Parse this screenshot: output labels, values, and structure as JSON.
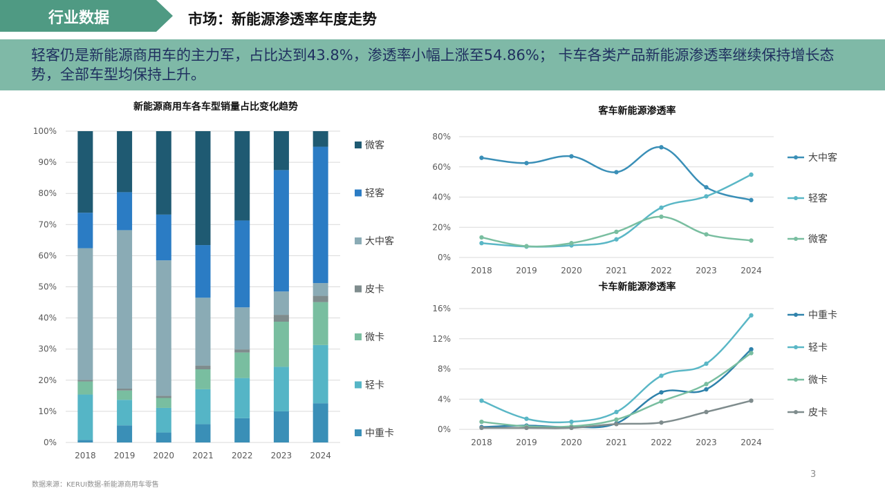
{
  "header": {
    "tag": "行业数据",
    "title": "市场：新能源渗透率年度走势",
    "summary": "轻客仍是新能源商用车的主力军，占比达到43.8%，渗透率小幅上涨至54.86%； 卡车各类产品新能源渗透率继续保持增长态势，全部车型均保持上升。"
  },
  "footer": {
    "source": "数据来源：KERUI数据-新能源商用车零售",
    "page": "3"
  },
  "chart_data": [
    {
      "type": "bar",
      "stacked": true,
      "title": "新能源商用车各车型销量占比变化趋势",
      "categories": [
        "2018",
        "2019",
        "2020",
        "2021",
        "2022",
        "2023",
        "2024"
      ],
      "ylim": [
        0,
        100
      ],
      "yticks": [
        "0%",
        "10%",
        "20%",
        "30%",
        "40%",
        "50%",
        "60%",
        "70%",
        "80%",
        "90%",
        "100%"
      ],
      "legend_position": "right",
      "series": [
        {
          "name": "中重卡",
          "color": "#3a8fb7",
          "values": [
            0.8,
            5.5,
            3.2,
            5.9,
            7.8,
            10.0,
            12.6
          ]
        },
        {
          "name": "轻卡",
          "color": "#55b5c6",
          "values": [
            14.6,
            8.2,
            7.9,
            11.2,
            12.9,
            14.3,
            18.7
          ]
        },
        {
          "name": "微卡",
          "color": "#79bea0",
          "values": [
            4.2,
            3.0,
            3.2,
            6.4,
            8.2,
            14.5,
            13.8
          ]
        },
        {
          "name": "皮卡",
          "color": "#7f8c8d",
          "values": [
            0.5,
            0.6,
            0.7,
            1.2,
            1.0,
            2.2,
            2.0
          ]
        },
        {
          "name": "大中客",
          "color": "#8aabb5",
          "values": [
            42.3,
            50.9,
            43.5,
            21.8,
            13.5,
            7.5,
            4.1
          ]
        },
        {
          "name": "轻客",
          "color": "#2b7cc4",
          "values": [
            11.4,
            12.2,
            14.7,
            16.9,
            27.9,
            39.0,
            43.8
          ]
        },
        {
          "name": "微客",
          "color": "#1f5a72",
          "values": [
            26.2,
            19.6,
            26.8,
            36.6,
            28.7,
            12.5,
            5.0
          ]
        }
      ]
    },
    {
      "type": "line",
      "title": "客车新能源渗透率",
      "x": [
        "2018",
        "2019",
        "2020",
        "2021",
        "2022",
        "2023",
        "2024"
      ],
      "ylim": [
        0,
        80
      ],
      "yticks": [
        "0%",
        "20%",
        "40%",
        "60%",
        "80%"
      ],
      "legend_position": "right",
      "series": [
        {
          "name": "大中客",
          "color": "#3a8fb7",
          "values": [
            66,
            62.5,
            67,
            56.5,
            73,
            46.5,
            38
          ]
        },
        {
          "name": "轻客",
          "color": "#5ab7c6",
          "values": [
            9.5,
            7.2,
            8,
            12,
            33,
            40.5,
            54.86
          ]
        },
        {
          "name": "微客",
          "color": "#79bea0",
          "values": [
            13.3,
            7.5,
            9.5,
            17,
            27,
            15.3,
            11.2
          ]
        }
      ]
    },
    {
      "type": "line",
      "title": "卡车新能源渗透率",
      "x": [
        "2018",
        "2019",
        "2020",
        "2021",
        "2022",
        "2023",
        "2024"
      ],
      "ylim": [
        0,
        16
      ],
      "yticks": [
        "0%",
        "4%",
        "8%",
        "12%",
        "16%"
      ],
      "legend_position": "right",
      "series": [
        {
          "name": "中重卡",
          "color": "#2f82ab",
          "values": [
            0.3,
            0.5,
            0.3,
            0.8,
            4.9,
            5.3,
            10.6
          ]
        },
        {
          "name": "轻卡",
          "color": "#5ab7c6",
          "values": [
            3.8,
            1.4,
            1.0,
            2.3,
            7.1,
            8.7,
            15.1
          ]
        },
        {
          "name": "微卡",
          "color": "#79bea0",
          "values": [
            1.0,
            0.4,
            0.4,
            1.3,
            3.7,
            6.0,
            10.1
          ]
        },
        {
          "name": "皮卡",
          "color": "#7f8c8d",
          "values": [
            0.2,
            0.2,
            0.2,
            0.7,
            0.9,
            2.3,
            3.8
          ]
        }
      ]
    }
  ]
}
